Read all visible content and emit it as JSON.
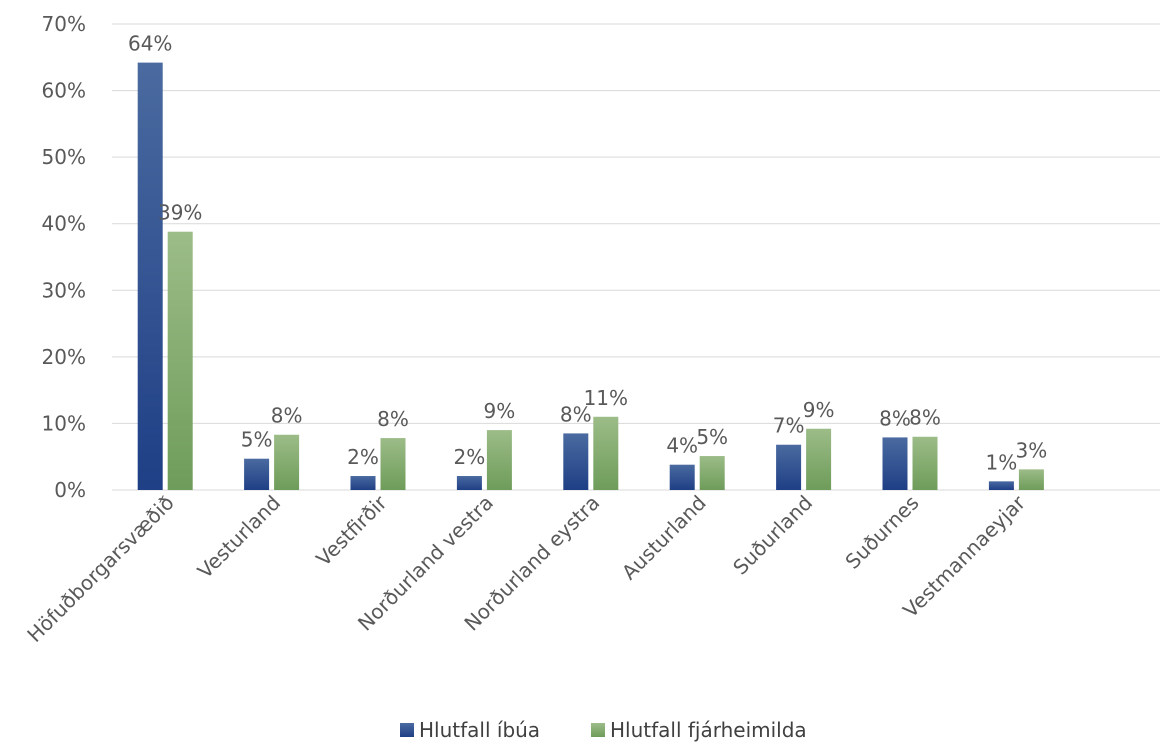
{
  "chart_data": {
    "type": "bar",
    "categories": [
      "Höfuðborgarsvæðið",
      "Vesturland",
      "Vestfirðir",
      "Norðurland vestra",
      "Norðurland eystra",
      "Austurland",
      "Suðurland",
      "Suðurnes",
      "Vestmannaeyjar"
    ],
    "series": [
      {
        "name": "Hlutfall íbúa",
        "values": [
          64.2,
          4.7,
          2.1,
          2.1,
          8.5,
          3.8,
          6.8,
          7.9,
          1.3
        ],
        "labels": [
          "64%",
          "5%",
          "2%",
          "2%",
          "8%",
          "4%",
          "7%",
          "8%",
          "1%"
        ],
        "color_top": "#4a6aa0",
        "color_bottom": "#1f3f86"
      },
      {
        "name": "Hlutfall fjárheimilda",
        "values": [
          38.8,
          8.3,
          7.8,
          9.0,
          11.0,
          5.1,
          9.2,
          8.0,
          3.1
        ],
        "labels": [
          "39%",
          "8%",
          "8%",
          "9%",
          "11%",
          "5%",
          "9%",
          "8%",
          "3%"
        ],
        "color_top": "#9cbc88",
        "color_bottom": "#6e9c5a"
      }
    ],
    "ylim": [
      0,
      70
    ],
    "yticks": [
      0,
      10,
      20,
      30,
      40,
      50,
      60,
      70
    ],
    "ytick_labels": [
      "0%",
      "10%",
      "20%",
      "30%",
      "40%",
      "50%",
      "60%",
      "70%"
    ],
    "grid": true,
    "legend_position": "bottom",
    "title": "",
    "xlabel": "",
    "ylabel": ""
  }
}
